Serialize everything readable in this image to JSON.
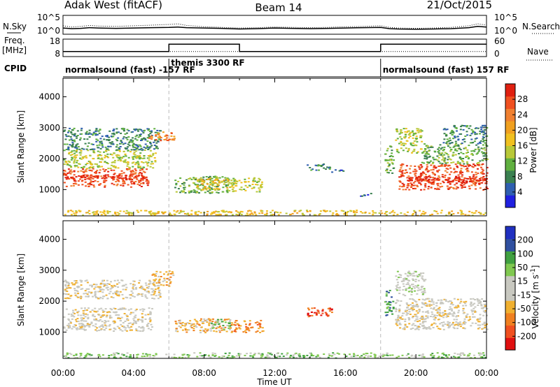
{
  "header": {
    "station": "Adak West (fitACF)",
    "beam": "Beam 14",
    "date": "21/Oct/2015"
  },
  "chart_data": [
    {
      "panel": "noise",
      "type": "line",
      "left_label": "N.Sky",
      "right_label": "N.Search",
      "left_ticks": [
        "10^5",
        "10^0"
      ],
      "right_ticks": [
        "10^5",
        "10^0"
      ],
      "ylim": [
        0,
        5
      ],
      "x_hours": [
        0,
        0.5,
        1,
        1.5,
        2,
        3,
        4,
        5,
        6,
        6.5,
        7,
        8,
        9,
        10,
        11,
        12,
        13,
        14,
        15,
        16,
        17,
        18,
        18.5,
        19,
        20,
        21,
        22,
        23,
        23.5,
        24
      ],
      "series": [
        {
          "values": [
            1.5,
            1.3,
            1.4,
            1.6,
            1.5,
            1.4,
            1.5,
            1.6,
            1.7,
            1.8,
            1.6,
            1.5,
            1.4,
            1.2,
            1.3,
            1.5,
            1.4,
            1.3,
            1.4,
            1.5,
            1.6,
            1.7,
            1.3,
            1.2,
            1.1,
            1.2,
            1.3,
            1.6,
            2.0,
            1.8
          ],
          "style": "solid"
        },
        {
          "values": [
            2.2,
            1.8,
            2.0,
            2.3,
            2.1,
            2.0,
            2.2,
            2.4,
            2.6,
            2.8,
            2.3,
            1.9,
            1.7,
            1.5,
            1.6,
            1.8,
            1.7,
            1.6,
            1.7,
            1.9,
            2.0,
            2.2,
            1.7,
            1.5,
            1.4,
            1.5,
            1.7,
            2.2,
            2.8,
            2.4
          ],
          "style": "dotted"
        }
      ]
    },
    {
      "panel": "frequency",
      "type": "line",
      "left_label": "Freq. [MHz]",
      "right_label": "Nave",
      "left_ticks": [
        "18",
        "8"
      ],
      "right_ticks": [
        "60",
        "0"
      ],
      "ylim": [
        8,
        18
      ],
      "x_hours": [
        0,
        6,
        6,
        10,
        10,
        18,
        18,
        24
      ],
      "series": [
        {
          "values": [
            10.5,
            10.5,
            15.5,
            15.5,
            10.5,
            10.5,
            15.5,
            15.5
          ],
          "style": "solid"
        },
        {
          "values": [
            10.5,
            10.5,
            10.5,
            10.5,
            10.5,
            10.5,
            10.5,
            10.5
          ],
          "style": "dotted"
        }
      ]
    },
    {
      "panel": "cpid",
      "type": "table",
      "label": "CPID",
      "segments": [
        {
          "start": 0,
          "end": 6,
          "text": "normalsound (fast) -157 RF"
        },
        {
          "start": 6,
          "end": 18,
          "text": "themis 3300 RF"
        },
        {
          "start": 18,
          "end": 24,
          "text": "normalsound (fast) 157 RF"
        }
      ]
    },
    {
      "panel": "power",
      "type": "heatmap",
      "ylabel": "Slant Range [km]",
      "ylim": [
        150,
        4600
      ],
      "yticks": [
        1000,
        2000,
        3000,
        4000
      ],
      "xlim": [
        0,
        24
      ],
      "colorbar": {
        "label": "Power [dB]",
        "ticks": [
          "4",
          "8",
          "12",
          "16",
          "20",
          "24",
          "28"
        ],
        "colors": [
          "#2020e0",
          "#2f5fb0",
          "#3a8050",
          "#60b040",
          "#b8c838",
          "#f0c020",
          "#f0a020",
          "#f08030",
          "#f05020",
          "#e02010"
        ]
      },
      "regions": [
        {
          "t0": 0.0,
          "t1": 4.8,
          "r0": 1100,
          "r1": 1700,
          "c": 8
        },
        {
          "t0": 0.0,
          "t1": 4.8,
          "r0": 1350,
          "r1": 1500,
          "c": 9
        },
        {
          "t0": 0.0,
          "t1": 5.2,
          "r0": 1700,
          "r1": 2300,
          "c": 4
        },
        {
          "t0": 0.0,
          "t1": 5.5,
          "r0": 2300,
          "r1": 3000,
          "c": 2
        },
        {
          "t0": 4.8,
          "t1": 6.3,
          "r0": 2600,
          "r1": 2900,
          "c": 7
        },
        {
          "t0": 6.3,
          "t1": 9.4,
          "r0": 900,
          "r1": 1450,
          "c": 3
        },
        {
          "t0": 7.5,
          "t1": 9.5,
          "r0": 1000,
          "r1": 1400,
          "c": 5
        },
        {
          "t0": 9.4,
          "t1": 11.3,
          "r0": 950,
          "r1": 1400,
          "c": 4
        },
        {
          "t0": 13.7,
          "t1": 15.1,
          "r0": 1650,
          "r1": 1850,
          "c": 2
        },
        {
          "t0": 15.1,
          "t1": 15.9,
          "r0": 1580,
          "r1": 1680,
          "c": 1
        },
        {
          "t0": 16.7,
          "t1": 17.5,
          "r0": 800,
          "r1": 900,
          "c": 1
        },
        {
          "t0": 18.2,
          "t1": 18.7,
          "r0": 1550,
          "r1": 2450,
          "c": 3
        },
        {
          "t0": 18.8,
          "t1": 20.3,
          "r0": 2200,
          "r1": 3000,
          "c": 4
        },
        {
          "t0": 19.0,
          "t1": 24.0,
          "r0": 1000,
          "r1": 1850,
          "c": 8
        },
        {
          "t0": 19.5,
          "t1": 24.0,
          "r0": 1200,
          "r1": 1450,
          "c": 9
        },
        {
          "t0": 20.3,
          "t1": 24.0,
          "r0": 1850,
          "r1": 2500,
          "c": 3
        },
        {
          "t0": 21.5,
          "t1": 24.0,
          "r0": 2500,
          "r1": 3100,
          "c": 2
        },
        {
          "t0": 0.0,
          "t1": 24.0,
          "r0": 180,
          "r1": 350,
          "c": 5
        }
      ]
    },
    {
      "panel": "velocity",
      "type": "heatmap",
      "ylabel": "Slant Range [km]",
      "ylim": [
        150,
        4600
      ],
      "yticks": [
        1000,
        2000,
        3000,
        4000
      ],
      "xlim": [
        0,
        24
      ],
      "xticks": [
        "00:00",
        "04:00",
        "08:00",
        "12:00",
        "16:00",
        "20:00",
        "00:00"
      ],
      "xlabel": "Time UT",
      "colorbar": {
        "label": "Velocity [m s-1]",
        "ticks": [
          "-200",
          "-100",
          "-50",
          "-15",
          "15",
          "50",
          "100",
          "200"
        ],
        "colors": [
          "#e01010",
          "#f05020",
          "#f08020",
          "#f0b030",
          "#c8c8c0",
          "#c8c8c0",
          "#80c850",
          "#40a040",
          "#3050a0",
          "#2030c0"
        ]
      },
      "regions": [
        {
          "t0": 0.0,
          "t1": 5.0,
          "r0": 1050,
          "r1": 1800,
          "c": 4
        },
        {
          "t0": 0.0,
          "t1": 5.5,
          "r0": 2100,
          "r1": 2700,
          "c": 4
        },
        {
          "t0": 5.0,
          "t1": 6.2,
          "r0": 2500,
          "r1": 3000,
          "c": 3
        },
        {
          "t0": 6.3,
          "t1": 9.5,
          "r0": 1000,
          "r1": 1450,
          "c": 3
        },
        {
          "t0": 8.3,
          "t1": 9.5,
          "r0": 1100,
          "r1": 1450,
          "c": 6
        },
        {
          "t0": 9.5,
          "t1": 11.3,
          "r0": 1000,
          "r1": 1400,
          "c": 2
        },
        {
          "t0": 13.7,
          "t1": 15.3,
          "r0": 1500,
          "r1": 1800,
          "c": 1
        },
        {
          "t0": 18.2,
          "t1": 18.7,
          "r0": 1550,
          "r1": 2400,
          "c": 7
        },
        {
          "t0": 18.8,
          "t1": 24.0,
          "r0": 1100,
          "r1": 2100,
          "c": 4
        },
        {
          "t0": 18.8,
          "t1": 20.5,
          "r0": 2200,
          "r1": 3000,
          "c": 5
        },
        {
          "t0": 0.0,
          "t1": 24.0,
          "r0": 180,
          "r1": 350,
          "c": 6
        }
      ]
    }
  ]
}
